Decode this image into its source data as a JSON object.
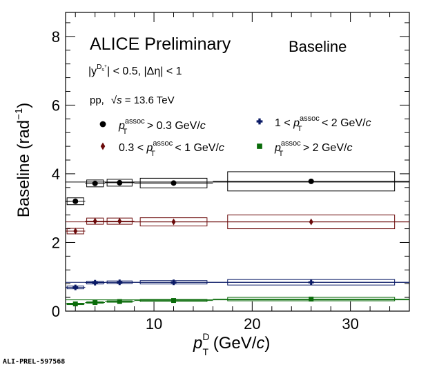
{
  "chart_data": {
    "type": "scatter",
    "title": "ALICE Preliminary",
    "subtitle": "Baseline",
    "annotations": {
      "rapidity": "|y",
      "rapidity_sup": "D",
      "rapidity_subsup": "s",
      "rapidity_plus": "+",
      "rapidity_rest": "| < 0.5, |Δη| < 1",
      "system": "pp,",
      "energy_sqrt": "√",
      "energy_s": "s",
      "energy_rest": " = 13.6 TeV"
    },
    "xlabel": {
      "p": "p",
      "sub": "T",
      "sup": "D",
      "rest": " (GeV/",
      "c": "c",
      "close": ")"
    },
    "ylabel": {
      "main": "Baseline (rad",
      "sup": "−1",
      "close": ")"
    },
    "xlim": [
      1,
      36
    ],
    "ylim": [
      0,
      8.7
    ],
    "x_ticks": [
      "10",
      "20",
      "30"
    ],
    "y_ticks": [
      "0",
      "2",
      "4",
      "6",
      "8"
    ],
    "watermark": "ALI-PREL-597568",
    "series": [
      {
        "name": "p_T^assoc > 0.3 GeV/c",
        "legend": {
          "pre": "",
          "p": "p",
          "sub": "T",
          "sup": "assoc",
          "post": " > 0.3 GeV/",
          "c": "c"
        },
        "color": "#000000",
        "marker": "circle",
        "x": [
          2,
          4,
          6.5,
          12,
          26
        ],
        "y": [
          3.2,
          3.72,
          3.74,
          3.73,
          3.78
        ],
        "xerr": [
          1,
          1,
          1.5,
          4,
          10
        ],
        "syst_y": [
          0.1,
          0.1,
          0.1,
          0.14,
          0.28
        ],
        "baseline": 3.76
      },
      {
        "name": "0.3 < p_T^assoc < 1 GeV/c",
        "legend": {
          "pre": "0.3 <  ",
          "p": "p",
          "sub": "T",
          "sup": "assoc",
          "post": " < 1 GeV/",
          "c": "c"
        },
        "color": "#6b0a0a",
        "marker": "diamond",
        "x": [
          2,
          4,
          6.5,
          12,
          26
        ],
        "y": [
          2.33,
          2.62,
          2.62,
          2.6,
          2.6
        ],
        "xerr": [
          1,
          1,
          1.5,
          4,
          10
        ],
        "syst_y": [
          0.08,
          0.09,
          0.09,
          0.12,
          0.2
        ],
        "baseline": 2.6
      },
      {
        "name": "1 < p_T^assoc < 2 GeV/c",
        "legend": {
          "pre": "1 <  ",
          "p": "p",
          "sub": "T",
          "sup": "assoc",
          "post": " < 2 GeV/",
          "c": "c"
        },
        "color": "#0a1a66",
        "marker": "cross",
        "x": [
          2,
          4,
          6.5,
          12,
          26
        ],
        "y": [
          0.69,
          0.83,
          0.84,
          0.84,
          0.84
        ],
        "xerr": [
          1,
          1,
          1.5,
          4,
          10
        ],
        "syst_y": [
          0.04,
          0.04,
          0.04,
          0.05,
          0.08
        ],
        "baseline": 0.84
      },
      {
        "name": "p_T^assoc > 2 GeV/c",
        "legend": {
          "pre": "",
          "p": "p",
          "sub": "T",
          "sup": "assoc",
          "post": " > 2 GeV/",
          "c": "c"
        },
        "color": "#0a6b0a",
        "marker": "square",
        "x": [
          2,
          4,
          6.5,
          12,
          26
        ],
        "y": [
          0.21,
          0.25,
          0.28,
          0.31,
          0.35
        ],
        "xerr": [
          1,
          1,
          1.5,
          4,
          10
        ],
        "syst_y": [
          0.02,
          0.02,
          0.02,
          0.03,
          0.05
        ],
        "baseline": 0.33
      }
    ]
  }
}
